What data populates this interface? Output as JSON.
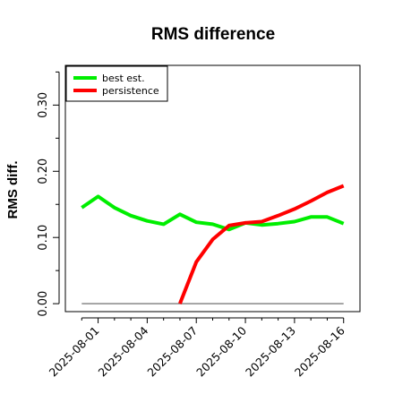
{
  "chart_data": {
    "type": "line",
    "title": "RMS difference",
    "xlabel": "",
    "ylabel": "RMS diff.",
    "x_tick_labels": [
      "2025-08-01",
      "2025-08-04",
      "2025-08-07",
      "2025-08-10",
      "2025-08-13",
      "2025-08-16"
    ],
    "x": [
      "2025-07-31",
      "2025-08-01",
      "2025-08-02",
      "2025-08-03",
      "2025-08-04",
      "2025-08-05",
      "2025-08-06",
      "2025-08-07",
      "2025-08-08",
      "2025-08-09",
      "2025-08-10",
      "2025-08-11",
      "2025-08-12",
      "2025-08-13",
      "2025-08-14",
      "2025-08-15",
      "2025-08-16"
    ],
    "xlim": [
      "2025-07-30",
      "2025-08-17"
    ],
    "ylim": [
      -0.012,
      0.36
    ],
    "y_ticks": [
      0.0,
      0.1,
      0.2,
      0.3
    ],
    "y_tick_labels": [
      "0.00",
      "0.10",
      "0.20",
      "0.30"
    ],
    "y_minor_ticks": [
      0.05,
      0.15,
      0.25,
      0.35
    ],
    "grid": false,
    "legend_position": "top-left",
    "series": [
      {
        "name": "best est.",
        "color": "#00ee00",
        "values": [
          0.145,
          0.162,
          0.145,
          0.133,
          0.125,
          0.12,
          0.135,
          0.123,
          0.12,
          0.112,
          0.122,
          0.119,
          0.121,
          0.124,
          0.131,
          0.131,
          0.121
        ]
      },
      {
        "name": "persistence",
        "color": "#ff0000",
        "values": [
          null,
          null,
          null,
          null,
          null,
          null,
          0.0,
          0.063,
          0.097,
          0.118,
          0.122,
          0.124,
          0.133,
          0.143,
          0.155,
          0.168,
          0.178
        ]
      }
    ],
    "reference_line": {
      "y": 0.0,
      "color": "#888888"
    }
  }
}
